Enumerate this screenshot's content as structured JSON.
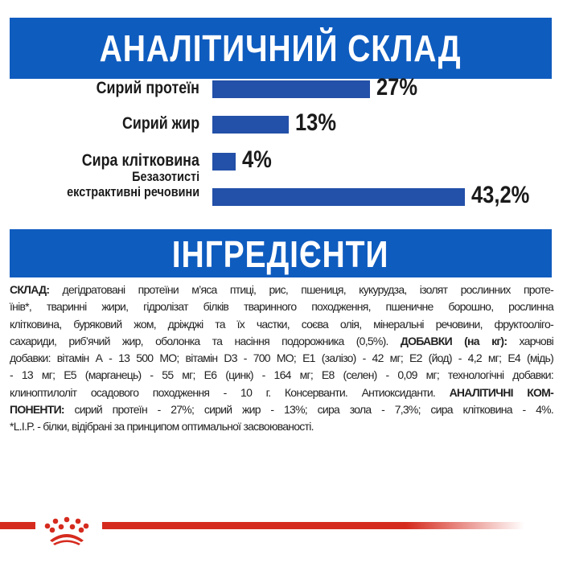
{
  "analysis": {
    "title": "АНАЛІТИЧНИЙ СКЛАД",
    "bar_color": "#2350a8"
  },
  "chart_data": {
    "type": "bar",
    "orientation": "horizontal",
    "categories": [
      "Сирий протеїн",
      "Сирий жир",
      "Сира клітковина",
      "Безазотисті екстрактивні речовини"
    ],
    "values": [
      27,
      13,
      4,
      43.2
    ],
    "value_labels": [
      "27%",
      "13%",
      "4%",
      "43,2%"
    ],
    "unit": "%"
  },
  "labels": {
    "nfe_line1": "Безазотисті",
    "nfe_line2": "екстрактивні речовини"
  },
  "ingredients": {
    "title": "ІНГРЕДІЄНТИ",
    "lines": [
      [
        "СКЛАД:",
        " дегідратовані протеїни м’яса птиці, рис, пшениця, кукурудза, ізолят рослинних проте-"
      ],
      [
        "їнів*, тваринні жири, гідролізат білків тваринного походження, пшеничне борошно, рослинна"
      ],
      [
        "клітковина, буряковий жом, дріжджі та їх частки, соєва олія, мінеральні речовини, фруктооліго-"
      ],
      [
        "сахариди, риб’ячий жир, оболонка та насіння подорожника (0,5%).  ",
        "ДОБАВКИ (на кг):",
        " харчові"
      ],
      [
        "добавки: вітамін А - 13 500 МО; вітамін D3 - 700 МО; Е1 (залізо) - 42 мг; Е2 (йод) - 4,2 мг; Е4 (мідь)"
      ],
      [
        "- 13 мг; Е5 (марганець) - 55 мг; Е6 (цинк) - 164 мг; Е8 (селен) - 0,09 мг; технологічні добавки:"
      ],
      [
        "клиноптилоліт осадового походження - 10 г. Консерванти. Антиоксиданти.  ",
        "АНАЛІТИЧНІ КОМ-"
      ],
      [
        "ПОНЕНТИ:",
        " сирий протеїн - 27%; сирий жир - 13%; сира зола - 7,3%; сира клітковина - 4%."
      ],
      [
        "*L.I.P. - білки, відібрані за принципом оптимальної засвоюваності."
      ]
    ]
  },
  "footer": {
    "logo": "Royal Canin crown",
    "accent_color": "#d52b1e"
  }
}
